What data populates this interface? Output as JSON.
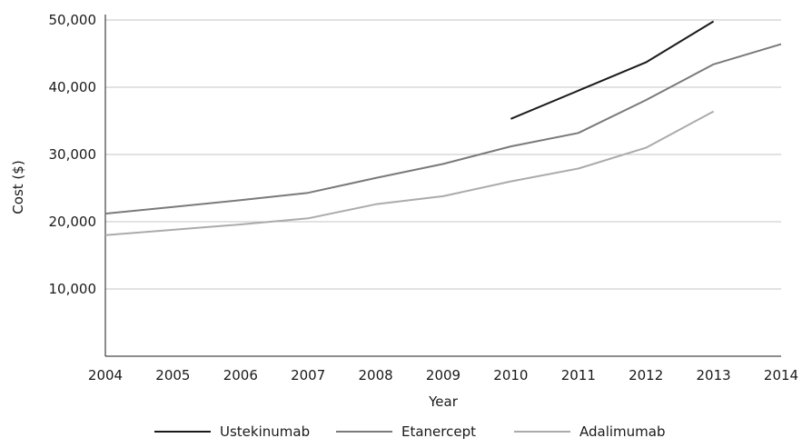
{
  "chart_data": {
    "type": "line",
    "title": "",
    "xlabel": "Year",
    "ylabel": "Cost ($)",
    "x": [
      2004,
      2005,
      2006,
      2007,
      2008,
      2009,
      2010,
      2011,
      2012,
      2013,
      2014
    ],
    "x_tick_labels": [
      "2004",
      "2005",
      "2006",
      "2007",
      "2008",
      "2009",
      "2010",
      "2011",
      "2012",
      "2013",
      "2014"
    ],
    "xlim": [
      2004,
      2014
    ],
    "ylim": [
      0,
      50000
    ],
    "y_ticks": [
      10000,
      20000,
      30000,
      40000,
      50000
    ],
    "y_tick_labels": [
      "10,000",
      "20,000",
      "30,000",
      "40,000",
      "50,000"
    ],
    "grid": "horizontal",
    "legend_position": "bottom",
    "series": [
      {
        "name": "Ustekinumab",
        "color": "#1a1a1a",
        "points": [
          [
            2010,
            35300
          ],
          [
            2011,
            39500
          ],
          [
            2012,
            43700
          ],
          [
            2013,
            49800
          ]
        ]
      },
      {
        "name": "Etanercept",
        "color": "#7a7a7a",
        "points": [
          [
            2004,
            21200
          ],
          [
            2005,
            22200
          ],
          [
            2006,
            23200
          ],
          [
            2007,
            24300
          ],
          [
            2008,
            26500
          ],
          [
            2009,
            28600
          ],
          [
            2010,
            31200
          ],
          [
            2011,
            33200
          ],
          [
            2012,
            38100
          ],
          [
            2013,
            43400
          ],
          [
            2014,
            46400
          ]
        ]
      },
      {
        "name": "Adalimumab",
        "color": "#ababab",
        "points": [
          [
            2004,
            18000
          ],
          [
            2005,
            18800
          ],
          [
            2006,
            19600
          ],
          [
            2007,
            20500
          ],
          [
            2008,
            22600
          ],
          [
            2009,
            23800
          ],
          [
            2010,
            26000
          ],
          [
            2011,
            27900
          ],
          [
            2012,
            31000
          ],
          [
            2013,
            36400
          ]
        ]
      }
    ]
  }
}
